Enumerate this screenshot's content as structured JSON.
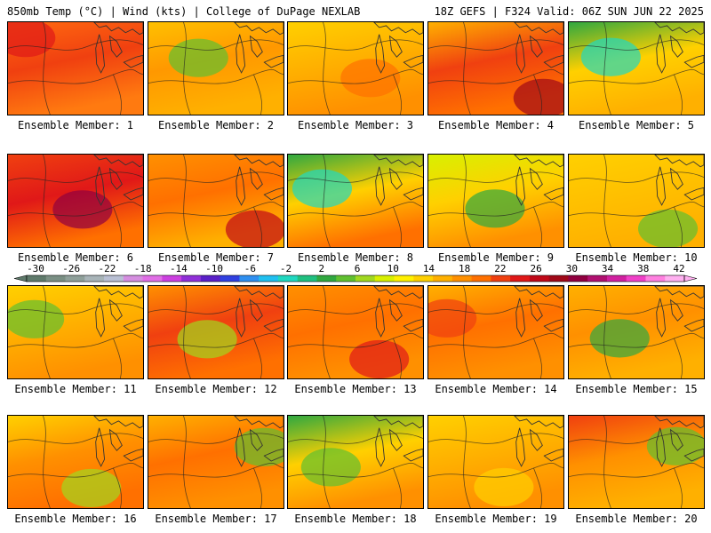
{
  "header": {
    "left": "850mb Temp (°C) | Wind (kts) | College of DuPage NEXLAB",
    "right": "18Z GEFS | F324 Valid: 06Z SUN JUN 22 2025"
  },
  "colorbar": {
    "ticks": [
      "-30",
      "-26",
      "-22",
      "-18",
      "-14",
      "-10",
      "-6",
      "-2",
      "2",
      "6",
      "10",
      "14",
      "18",
      "22",
      "26",
      "30",
      "34",
      "38",
      "42"
    ],
    "tick_values": [
      -30,
      -26,
      -22,
      -18,
      -14,
      -10,
      -6,
      -2,
      2,
      6,
      10,
      14,
      18,
      22,
      26,
      30,
      34,
      38,
      42
    ],
    "colors": [
      "#5f7a6b",
      "#7a8f84",
      "#8fa09a",
      "#a8b4b8",
      "#b9c0d4",
      "#d58ee0",
      "#e06ee6",
      "#cc40e0",
      "#9030d8",
      "#5a20c8",
      "#3040e0",
      "#2f8ff0",
      "#20c0f0",
      "#20d8c0",
      "#20c080",
      "#30a840",
      "#60c030",
      "#a0d820",
      "#d8f000",
      "#fff000",
      "#ffd000",
      "#ffb000",
      "#ff9000",
      "#ff7000",
      "#f04010",
      "#e01818",
      "#c00818",
      "#a00818",
      "#900040",
      "#b01070",
      "#d020a0",
      "#f040c8",
      "#ff80e0",
      "#ffb0f0"
    ]
  },
  "panels": [
    {
      "label": "Ensemble Member: 1",
      "top": "#ff6a10",
      "mid": "#f04010",
      "bot": "#ff7a10",
      "accent": "#e01818"
    },
    {
      "label": "Ensemble Member: 2",
      "top": "#ffc000",
      "mid": "#ff9800",
      "bot": "#ffb000",
      "accent": "#60c030"
    },
    {
      "label": "Ensemble Member: 3",
      "top": "#ffd000",
      "mid": "#ffb000",
      "bot": "#ff9000",
      "accent": "#ff7000"
    },
    {
      "label": "Ensemble Member: 4",
      "top": "#ffb000",
      "mid": "#f04010",
      "bot": "#ff7000",
      "accent": "#a00818"
    },
    {
      "label": "Ensemble Member: 5",
      "top": "#30a840",
      "mid": "#ffd000",
      "bot": "#ffb000",
      "accent": "#20d8c0"
    },
    {
      "label": "Ensemble Member: 6",
      "top": "#f04010",
      "mid": "#e01818",
      "bot": "#ff7000",
      "accent": "#900040"
    },
    {
      "label": "Ensemble Member: 7",
      "top": "#ff9000",
      "mid": "#ff7000",
      "bot": "#ffb000",
      "accent": "#c00818"
    },
    {
      "label": "Ensemble Member: 8",
      "top": "#30a840",
      "mid": "#ffd000",
      "bot": "#ff7000",
      "accent": "#20d8c0"
    },
    {
      "label": "Ensemble Member: 9",
      "top": "#d8f000",
      "mid": "#ffd000",
      "bot": "#ff9000",
      "accent": "#30a840"
    },
    {
      "label": "Ensemble Member: 10",
      "top": "#ffd000",
      "mid": "#ffc000",
      "bot": "#ffb000",
      "accent": "#60c030"
    },
    {
      "label": "Ensemble Member: 11",
      "top": "#ffd000",
      "mid": "#ffb000",
      "bot": "#ff9000",
      "accent": "#60c030"
    },
    {
      "label": "Ensemble Member: 12",
      "top": "#ff9000",
      "mid": "#f04010",
      "bot": "#ff7000",
      "accent": "#a0d820"
    },
    {
      "label": "Ensemble Member: 13",
      "top": "#ff9000",
      "mid": "#ff7000",
      "bot": "#ff9000",
      "accent": "#e01818"
    },
    {
      "label": "Ensemble Member: 14",
      "top": "#ffb000",
      "mid": "#ff7000",
      "bot": "#ff9000",
      "accent": "#f04010"
    },
    {
      "label": "Ensemble Member: 15",
      "top": "#ffb000",
      "mid": "#ff9000",
      "bot": "#ffb000",
      "accent": "#30a840"
    },
    {
      "label": "Ensemble Member: 16",
      "top": "#ffd000",
      "mid": "#ff9000",
      "bot": "#ff7000",
      "accent": "#a0d820"
    },
    {
      "label": "Ensemble Member: 17",
      "top": "#ffb000",
      "mid": "#ff7000",
      "bot": "#ff9000",
      "accent": "#60c030"
    },
    {
      "label": "Ensemble Member: 18",
      "top": "#30a840",
      "mid": "#ffd000",
      "bot": "#ff9000",
      "accent": "#60c030"
    },
    {
      "label": "Ensemble Member: 19",
      "top": "#ffd000",
      "mid": "#ffb000",
      "bot": "#ff9000",
      "accent": "#ffd000"
    },
    {
      "label": "Ensemble Member: 20",
      "top": "#f04010",
      "mid": "#ff9000",
      "bot": "#ffb000",
      "accent": "#60c030"
    }
  ]
}
